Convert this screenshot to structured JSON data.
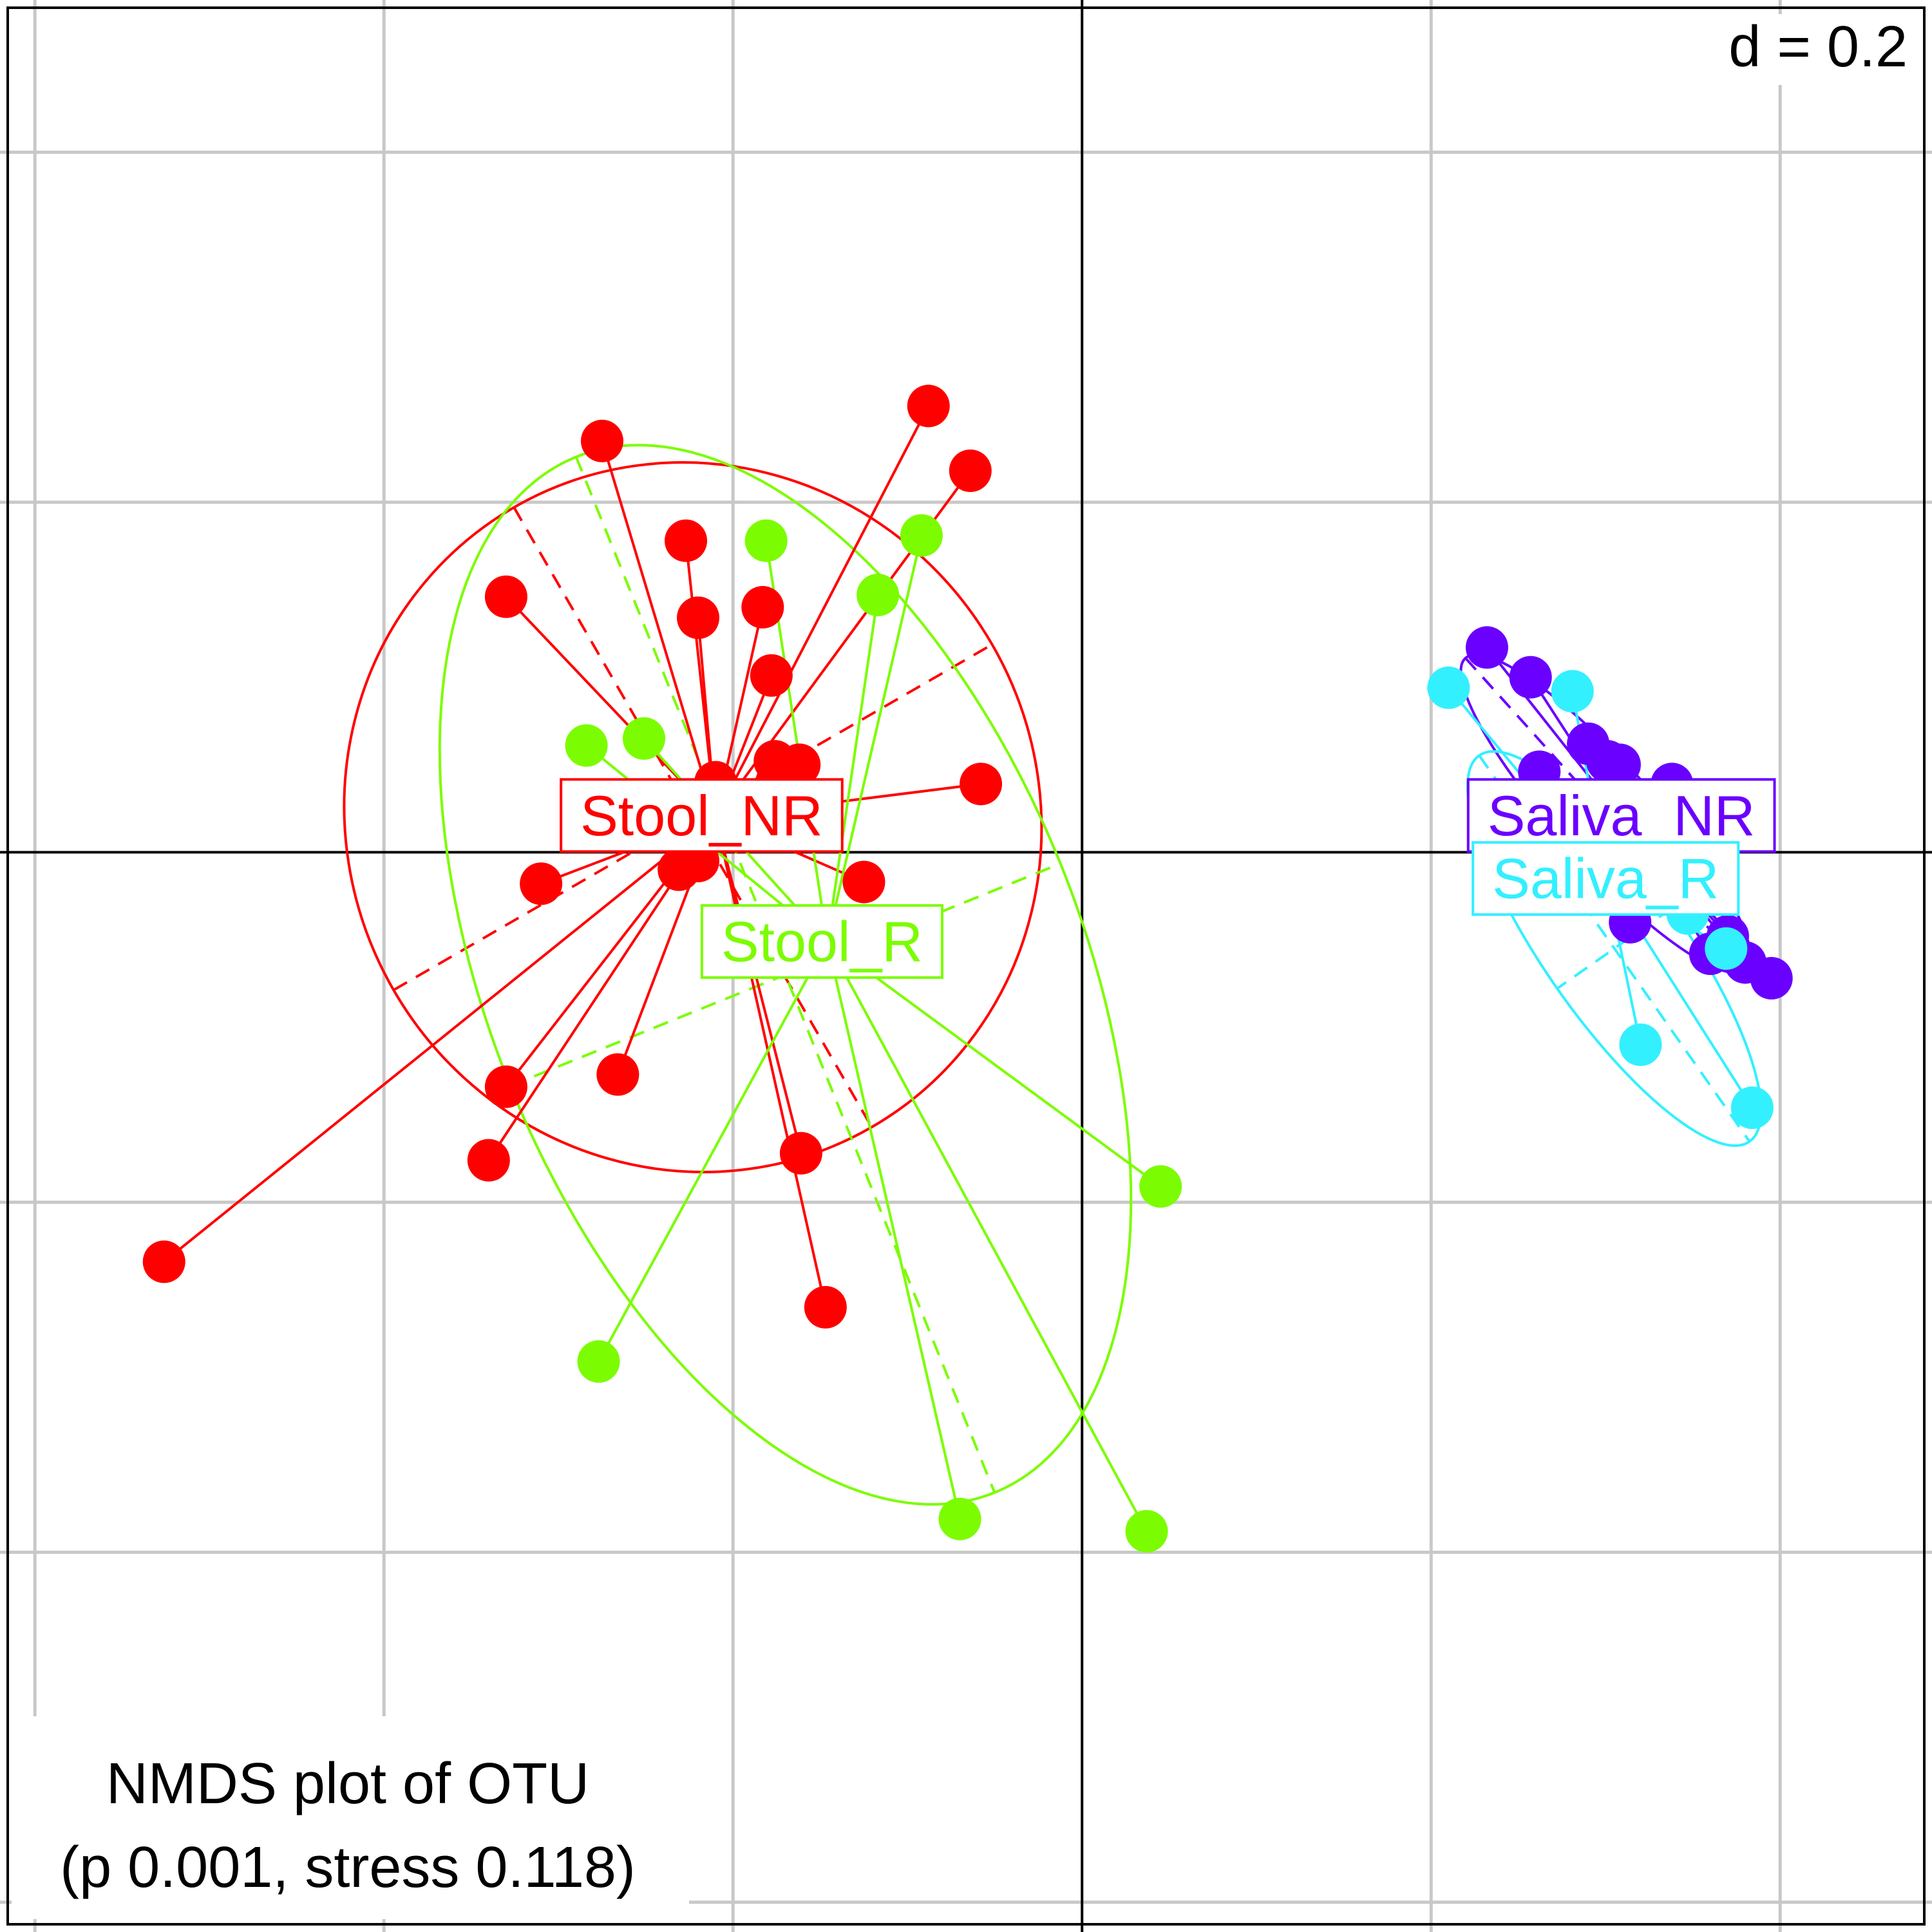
{
  "chart_data": {
    "type": "scatter",
    "method": "NMDS ordination with class centroids, spider lines and inertia ellipses",
    "scale_label": "d = 0.2",
    "grid_step": 0.2,
    "grid": true,
    "caption": {
      "line1": "NMDS plot of OTU",
      "line2": "(p 0.001, stress 0.118)"
    },
    "xlim": [
      -0.62,
      0.487
    ],
    "ylim": [
      -0.617,
      0.487
    ],
    "series": [
      {
        "name": "Stool_NR",
        "color": "#ff0000",
        "centroid": [
          -0.21,
          0.02
        ],
        "label_pos": [
          -0.218,
          0.021
        ],
        "ellipse": {
          "center": [
            -0.223,
            0.02
          ],
          "rx": 0.198,
          "ry": 0.205,
          "rotation_deg": -30
        },
        "points": [
          [
            -0.275,
            0.235
          ],
          [
            -0.227,
            0.178
          ],
          [
            -0.33,
            0.146
          ],
          [
            -0.22,
            0.134
          ],
          [
            -0.183,
            0.14
          ],
          [
            -0.178,
            0.101
          ],
          [
            -0.088,
            0.255
          ],
          [
            -0.064,
            0.218
          ],
          [
            -0.176,
            0.052
          ],
          [
            -0.162,
            0.05
          ],
          [
            -0.175,
            0.04
          ],
          [
            -0.058,
            0.039
          ],
          [
            -0.231,
            -0.01
          ],
          [
            -0.125,
            -0.017
          ],
          [
            -0.31,
            -0.018
          ],
          [
            -0.33,
            -0.134
          ],
          [
            -0.266,
            -0.127
          ],
          [
            -0.34,
            -0.176
          ],
          [
            -0.161,
            -0.172
          ],
          [
            -0.526,
            -0.234
          ],
          [
            -0.147,
            -0.26
          ],
          [
            -0.22,
            -0.005
          ],
          [
            -0.21,
            0.04
          ]
        ]
      },
      {
        "name": "Stool_R",
        "color": "#7cfc00",
        "centroid": [
          -0.146,
          -0.051
        ],
        "label_pos": [
          -0.149,
          -0.051
        ],
        "ellipse": {
          "center": [
            -0.17,
            -0.07
          ],
          "rx": 0.17,
          "ry": 0.32,
          "rotation_deg": -22
        },
        "points": [
          [
            -0.181,
            0.178
          ],
          [
            -0.092,
            0.181
          ],
          [
            -0.117,
            0.147
          ],
          [
            -0.284,
            0.061
          ],
          [
            -0.251,
            0.065
          ],
          [
            0.045,
            -0.191
          ],
          [
            -0.277,
            -0.291
          ],
          [
            -0.07,
            -0.381
          ],
          [
            0.037,
            -0.388
          ]
        ]
      },
      {
        "name": "Saliva_NR",
        "color": "#6a00ff",
        "centroid": [
          0.309,
          0.02
        ],
        "label_pos": [
          0.309,
          0.021
        ],
        "ellipse": {
          "center": [
            0.3,
            0.022
          ],
          "rx": 0.12,
          "ry": 0.028,
          "rotation_deg": 48
        },
        "points": [
          [
            0.232,
            0.117
          ],
          [
            0.257,
            0.1
          ],
          [
            0.262,
            0.046
          ],
          [
            0.29,
            0.062
          ],
          [
            0.301,
            0.052
          ],
          [
            0.308,
            0.05
          ],
          [
            0.338,
            0.039
          ],
          [
            0.314,
            -0.04
          ],
          [
            0.36,
            -0.058
          ],
          [
            0.38,
            -0.063
          ],
          [
            0.395,
            -0.072
          ],
          [
            0.37,
            -0.048
          ]
        ]
      },
      {
        "name": "Saliva_R",
        "color": "#33f0ff",
        "centroid": [
          0.3,
          -0.014
        ],
        "label_pos": [
          0.3,
          -0.015
        ],
        "ellipse": {
          "center": [
            0.305,
            -0.055
          ],
          "rx": 0.135,
          "ry": 0.04,
          "rotation_deg": 55
        },
        "points": [
          [
            0.21,
            0.094
          ],
          [
            0.281,
            0.092
          ],
          [
            0.347,
            -0.035
          ],
          [
            0.32,
            -0.11
          ],
          [
            0.369,
            -0.055
          ],
          [
            0.384,
            -0.146
          ]
        ]
      }
    ]
  }
}
